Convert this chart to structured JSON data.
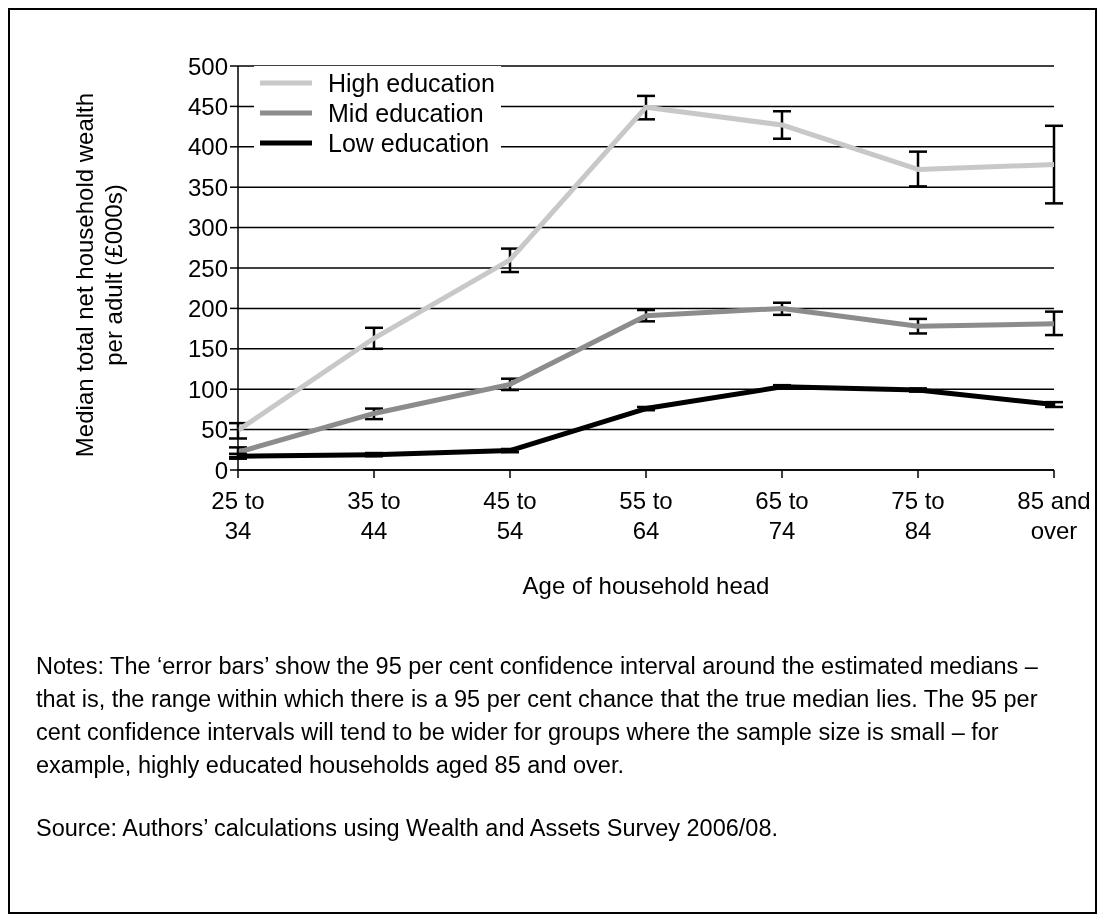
{
  "chart_data": {
    "type": "line",
    "xlabel": "Age of household head",
    "ylabel": "Median total net household wealth per adult (£000s)",
    "categories": [
      "25 to 34",
      "35 to 44",
      "45 to 54",
      "55 to 64",
      "65 to 74",
      "75 to 84",
      "85 and over"
    ],
    "series": [
      {
        "name": "High education",
        "color": "#c8c8c8",
        "values": [
          49,
          163,
          260,
          449,
          427,
          372,
          378
        ],
        "errors": [
          [
            39,
            58
          ],
          [
            150,
            176
          ],
          [
            245,
            274
          ],
          [
            434,
            463
          ],
          [
            410,
            444
          ],
          [
            351,
            394
          ],
          [
            330,
            426
          ]
        ]
      },
      {
        "name": "Mid education",
        "color": "#8c8c8c",
        "values": [
          22,
          70,
          106,
          191,
          200,
          178,
          181
        ],
        "errors": [
          [
            16,
            28
          ],
          [
            63,
            76
          ],
          [
            99,
            113
          ],
          [
            184,
            198
          ],
          [
            192,
            207
          ],
          [
            169,
            187
          ],
          [
            167,
            196
          ]
        ]
      },
      {
        "name": "Low education",
        "color": "#000000",
        "values": [
          17,
          19,
          24,
          76,
          103,
          99,
          81
        ],
        "errors": [
          [
            14,
            20
          ],
          [
            17,
            21
          ],
          [
            22,
            26
          ],
          [
            74,
            78
          ],
          [
            101,
            105
          ],
          [
            97,
            101
          ],
          [
            78,
            84
          ]
        ]
      }
    ],
    "ylim": [
      0,
      500
    ],
    "yticks": [
      0,
      50,
      100,
      150,
      200,
      250,
      300,
      350,
      400,
      450,
      500
    ],
    "grid": "y",
    "legend": "top left",
    "marker": "none",
    "line_style": "solid",
    "annotations": [
      "Notes: The ‘error bars’ show the 95 per cent confidence interval around the estimated medians – that is, the range within which there is a 95 per cent chance that the true median lies. The 95 per cent confidence intervals will tend to be wider for groups where the sample size is small – for example, highly educated households aged 85 and over.",
      "Source: Authors’ calculations using Wealth and Assets Survey 2006/08."
    ]
  }
}
